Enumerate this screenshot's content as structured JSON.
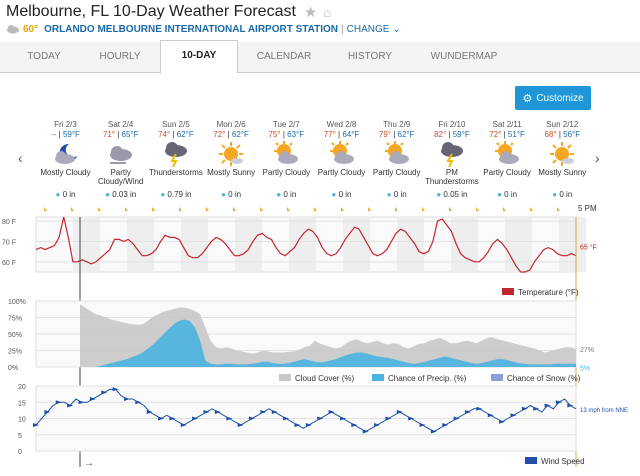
{
  "header": {
    "title": "Melbourne, FL 10-Day Weather Forecast",
    "current_temp": "60°",
    "station": "ORLANDO MELBOURNE INTERNATIONAL AIRPORT STATION",
    "separator": "|",
    "change_label": "CHANGE"
  },
  "tabs": [
    {
      "label": "TODAY"
    },
    {
      "label": "HOURLY"
    },
    {
      "label": "10-DAY",
      "active": true
    },
    {
      "label": "CALENDAR"
    },
    {
      "label": "HISTORY"
    },
    {
      "label": "WUNDERMAP"
    }
  ],
  "customize_label": "Customize",
  "days": [
    {
      "date": "Fri 2/3",
      "high": "--",
      "low": "59°F",
      "icon": "partly-cloudy-night-icon",
      "condition": "Mostly Cloudy",
      "precip": "0 in"
    },
    {
      "date": "Sat 2/4",
      "high": "71°",
      "low": "65°F",
      "icon": "cloudy-wind-icon",
      "condition": "Partly Cloudy/Wind",
      "precip": "0.03 in"
    },
    {
      "date": "Sun 2/5",
      "high": "74°",
      "low": "62°F",
      "icon": "thunderstorm-icon",
      "condition": "Thunderstorms",
      "precip": "0.79 in"
    },
    {
      "date": "Mon 2/6",
      "high": "72°",
      "low": "62°F",
      "icon": "mostly-sunny-icon",
      "condition": "Mostly Sunny",
      "precip": "0 in"
    },
    {
      "date": "Tue 2/7",
      "high": "75°",
      "low": "63°F",
      "icon": "partly-cloudy-icon",
      "condition": "Partly Cloudy",
      "precip": "0 in"
    },
    {
      "date": "Wed 2/8",
      "high": "77°",
      "low": "64°F",
      "icon": "partly-cloudy-icon",
      "condition": "Partly Cloudy",
      "precip": "0 in"
    },
    {
      "date": "Thu 2/9",
      "high": "79°",
      "low": "62°F",
      "icon": "partly-cloudy-icon",
      "condition": "Partly Cloudy",
      "precip": "0 in"
    },
    {
      "date": "Fri 2/10",
      "high": "82°",
      "low": "59°F",
      "icon": "thunderstorm-icon",
      "condition": "PM Thunderstorms",
      "precip": "0.05 in"
    },
    {
      "date": "Sat 2/11",
      "high": "72°",
      "low": "51°F",
      "icon": "partly-cloudy-icon",
      "condition": "Partly Cloudy",
      "precip": "0 in"
    },
    {
      "date": "Sun 2/12",
      "high": "68°",
      "low": "56°F",
      "icon": "mostly-sunny-icon",
      "condition": "Mostly Sunny",
      "precip": "0 in"
    }
  ],
  "time_marker": "5 PM",
  "colors": {
    "temperature": "#c0272d",
    "cloud_cover": "#c8c8c8",
    "precip": "#4bb3df",
    "snow": "#8b9fd6",
    "wind": "#1f4fa8",
    "accent": "#1e96d8"
  },
  "chart_data": [
    {
      "type": "line",
      "ylabel_ticks": [
        "80 F",
        "70 F",
        "60 F"
      ],
      "ylim": [
        55,
        82
      ],
      "legend": [
        "Temperature (°F)"
      ],
      "current_label": "65 °F",
      "series": [
        {
          "name": "Temperature (°F)",
          "values": [
            66,
            67,
            66,
            67,
            68,
            72,
            82,
            72,
            60,
            60,
            61,
            60,
            59,
            60,
            62,
            64,
            66,
            71,
            71,
            70,
            71,
            69,
            66,
            63,
            63,
            64,
            66,
            70,
            73,
            72,
            72,
            71,
            67,
            63,
            62,
            62,
            64,
            67,
            70,
            72,
            71,
            69,
            66,
            63,
            63,
            64,
            66,
            70,
            73,
            74,
            72,
            71,
            67,
            64,
            63,
            65,
            67,
            71,
            74,
            76,
            75,
            72,
            67,
            64,
            63,
            64,
            67,
            71,
            74,
            77,
            76,
            72,
            68,
            64,
            63,
            64,
            66,
            70,
            74,
            76,
            75,
            72,
            69,
            65,
            64,
            65,
            70,
            80,
            81,
            78,
            75,
            69,
            64,
            62,
            61,
            60,
            60,
            62,
            65,
            69,
            71,
            69,
            66,
            62,
            58,
            55,
            55,
            56,
            60,
            63,
            66,
            67,
            66,
            64,
            63,
            63,
            64,
            63
          ]
        }
      ]
    },
    {
      "type": "area",
      "y_ticks": [
        "100%",
        "75%",
        "50%",
        "25%",
        "0%"
      ],
      "ylim": [
        0,
        100
      ],
      "legend": [
        "Cloud Cover (%)",
        "Chance of Precip. (%)",
        "Chance of Snow (%)"
      ],
      "current_labels": [
        "27%",
        "5%"
      ],
      "series": [
        {
          "name": "Cloud Cover (%)",
          "values": [
            95,
            90,
            85,
            80,
            78,
            75,
            72,
            70,
            68,
            66,
            65,
            64,
            65,
            70,
            76,
            80,
            84,
            86,
            88,
            90,
            90,
            88,
            85,
            80,
            60,
            40,
            30,
            28,
            30,
            28,
            25,
            24,
            22,
            20,
            22,
            25,
            24,
            22,
            22,
            22,
            23,
            24,
            26,
            30,
            32,
            40,
            35,
            33,
            30,
            28,
            30,
            36,
            40,
            42,
            38,
            36,
            38,
            40,
            36,
            34,
            36,
            35,
            30,
            28,
            32,
            35,
            36,
            40,
            42,
            44,
            40,
            36,
            36,
            38,
            40,
            38,
            36,
            40,
            44,
            45,
            42,
            40,
            38,
            36,
            34,
            32,
            30,
            28,
            25,
            22,
            24,
            26,
            28,
            30,
            30,
            27
          ]
        },
        {
          "name": "Chance of Precip. (%)",
          "values": [
            0,
            0,
            0,
            0,
            2,
            4,
            6,
            8,
            10,
            12,
            15,
            18,
            22,
            28,
            34,
            42,
            50,
            58,
            65,
            70,
            72,
            70,
            60,
            40,
            10,
            5,
            4,
            4,
            5,
            5,
            4,
            4,
            4,
            5,
            6,
            8,
            8,
            6,
            5,
            5,
            6,
            8,
            10,
            12,
            10,
            8,
            7,
            8,
            10,
            12,
            15,
            18,
            20,
            22,
            22,
            20,
            18,
            16,
            15,
            14,
            12,
            10,
            8,
            6,
            5,
            6,
            8,
            10,
            12,
            14,
            16,
            14,
            12,
            10,
            8,
            6,
            5,
            6,
            8,
            10,
            12,
            12,
            10,
            8,
            6,
            5,
            4,
            4,
            4,
            4,
            4,
            5,
            5,
            5,
            5,
            5
          ]
        },
        {
          "name": "Chance of Snow (%)",
          "values": [
            0
          ]
        }
      ]
    },
    {
      "type": "line",
      "y_ticks": [
        "20",
        "15",
        "10",
        "5",
        "0"
      ],
      "ylim": [
        0,
        20
      ],
      "legend": [
        "Wind Speed"
      ],
      "current_label": "13 mph from NNE",
      "series": [
        {
          "name": "Wind Speed",
          "values": [
            8,
            10,
            12,
            14,
            15,
            15,
            14,
            16,
            15,
            15,
            16,
            17,
            18,
            19,
            19,
            17,
            16,
            16,
            15,
            14,
            12,
            11,
            10,
            11,
            10,
            9,
            8,
            9,
            10,
            11,
            12,
            13,
            12,
            11,
            10,
            9,
            8,
            9,
            10,
            11,
            12,
            13,
            12,
            11,
            10,
            9,
            8,
            7,
            8,
            9,
            10,
            11,
            12,
            11,
            10,
            9,
            8,
            7,
            6,
            7,
            8,
            9,
            10,
            11,
            12,
            11,
            10,
            9,
            8,
            7,
            6,
            7,
            8,
            9,
            10,
            11,
            12,
            13,
            13,
            12,
            11,
            10,
            9,
            10,
            11,
            12,
            13,
            14,
            13,
            12,
            14,
            13,
            15,
            16,
            14,
            13
          ]
        }
      ]
    }
  ]
}
